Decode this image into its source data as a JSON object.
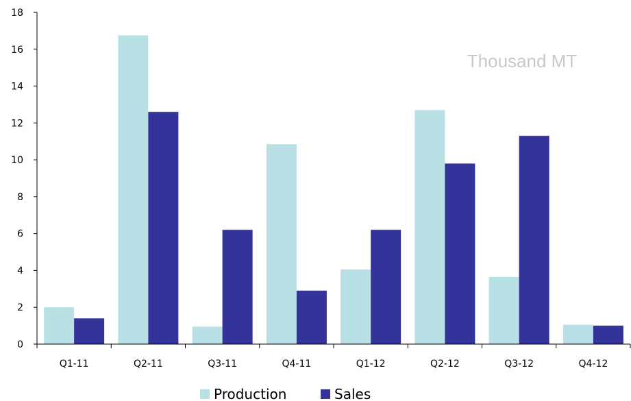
{
  "chart_data": {
    "type": "bar",
    "categories": [
      "Q1-11",
      "Q2-11",
      "Q3-11",
      "Q4-11",
      "Q1-12",
      "Q2-12",
      "Q3-12",
      "Q4-12"
    ],
    "series": [
      {
        "name": "Production",
        "color": "#b9e1e5",
        "values": [
          2.0,
          16.75,
          0.95,
          10.85,
          4.05,
          12.7,
          3.65,
          1.05
        ]
      },
      {
        "name": "Sales",
        "color": "#333399",
        "values": [
          1.4,
          12.6,
          6.2,
          2.9,
          6.2,
          9.8,
          11.3,
          1.0
        ]
      }
    ],
    "y_ticks": [
      "0",
      "2",
      "4",
      "6",
      "8",
      "10",
      "12",
      "14",
      "16",
      "18"
    ],
    "ylim": [
      0,
      18
    ],
    "unit_label": "Thousand MT",
    "legend_position": "bottom-center",
    "grid": false
  }
}
